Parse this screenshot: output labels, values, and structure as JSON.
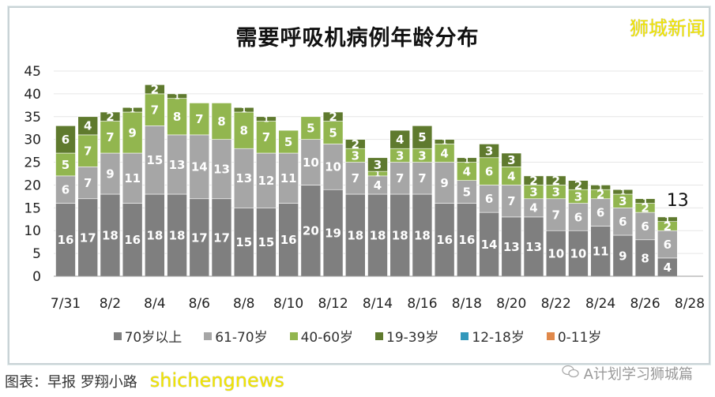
{
  "watermark_top": "狮城新闻",
  "credit": "图表：早报 罗翔小路",
  "credit_watermark": "shichengnews",
  "account": "A计划学习狮城篇",
  "account_icon": "wechat-icon",
  "chart_data": {
    "type": "bar",
    "stacked": true,
    "title": "需要呼吸机病例年龄分布",
    "xlabel": "",
    "ylabel": "",
    "ylim": [
      0,
      45
    ],
    "yticks": [
      0,
      5,
      10,
      15,
      20,
      25,
      30,
      35,
      40,
      45
    ],
    "grid": true,
    "legend_position": "bottom",
    "categories": [
      "7/31",
      "8/1",
      "8/2",
      "8/3",
      "8/4",
      "8/5",
      "8/6",
      "8/7",
      "8/8",
      "8/9",
      "8/10",
      "8/11",
      "8/12",
      "8/13",
      "8/14",
      "8/15",
      "8/16",
      "8/17",
      "8/18",
      "8/19",
      "8/20",
      "8/21",
      "8/22",
      "8/23",
      "8/24",
      "8/25",
      "8/26",
      "8/27",
      "8/28"
    ],
    "xtick_labels": [
      "7/31",
      "8/2",
      "8/4",
      "8/6",
      "8/8",
      "8/10",
      "8/12",
      "8/14",
      "8/16",
      "8/18",
      "8/20",
      "8/22",
      "8/24",
      "8/26",
      "8/28"
    ],
    "series": [
      {
        "name": "70岁以上",
        "color": "#7f7f7f",
        "values": [
          16,
          17,
          18,
          16,
          18,
          18,
          17,
          17,
          15,
          15,
          16,
          20,
          19,
          18,
          18,
          18,
          18,
          16,
          16,
          14,
          13,
          13,
          10,
          10,
          11,
          9,
          8,
          4,
          null
        ]
      },
      {
        "name": "61-70岁",
        "color": "#a6a6a6",
        "values": [
          6,
          7,
          9,
          11,
          15,
          13,
          14,
          13,
          13,
          12,
          11,
          10,
          10,
          7,
          4,
          7,
          7,
          9,
          5,
          6,
          7,
          4,
          7,
          6,
          6,
          6,
          6,
          6,
          null
        ]
      },
      {
        "name": "40-60岁",
        "color": "#92b64f",
        "values": [
          5,
          7,
          7,
          9,
          7,
          8,
          7,
          8,
          8,
          7,
          5,
          5,
          5,
          3,
          1,
          3,
          3,
          4,
          4,
          6,
          4,
          3,
          3,
          3,
          2,
          3,
          2,
          2,
          null
        ]
      },
      {
        "name": "19-39岁",
        "color": "#5f7a2e",
        "values": [
          6,
          4,
          2,
          1,
          2,
          1,
          0,
          0,
          1,
          1,
          0,
          0,
          2,
          2,
          3,
          4,
          5,
          1,
          1,
          3,
          3,
          2,
          2,
          2,
          1,
          1,
          1,
          1,
          null
        ]
      },
      {
        "name": "12-18岁",
        "color": "#3398bb",
        "values": [
          0,
          0,
          0,
          0,
          0,
          0,
          0,
          0,
          0,
          0,
          0,
          0,
          0,
          0,
          0,
          0,
          0,
          0,
          0,
          0,
          0,
          0,
          0,
          0,
          0,
          0,
          0,
          0,
          null
        ]
      },
      {
        "name": "0-11岁",
        "color": "#e0884a",
        "values": [
          0,
          0,
          0,
          0,
          0,
          0,
          0,
          0,
          0,
          0,
          0,
          0,
          0,
          0,
          0,
          0,
          0,
          0,
          0,
          0,
          0,
          0,
          0,
          0,
          0,
          0,
          0,
          0,
          null
        ]
      }
    ],
    "annotations": [
      {
        "category": "8/27",
        "text": "13"
      }
    ]
  }
}
